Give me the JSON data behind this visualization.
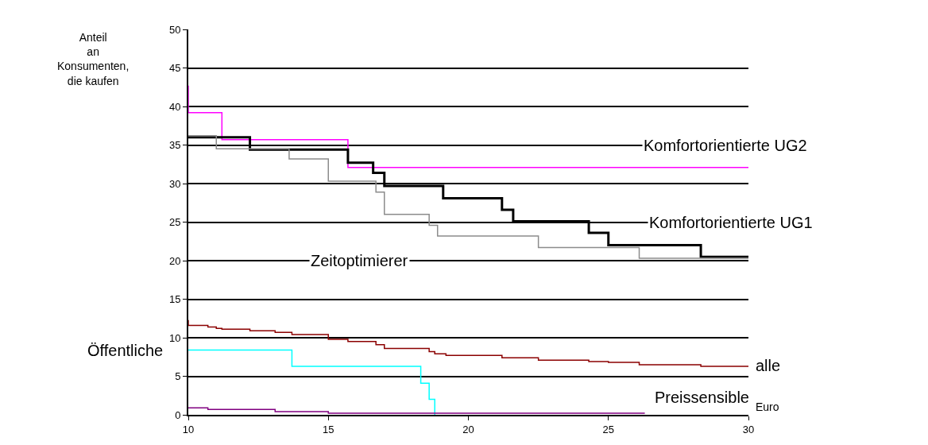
{
  "chart_data": {
    "type": "step",
    "xlabel": "Euro",
    "ylabel": "Anteil\nan\nKonsumenten,\ndie kaufen",
    "xlim": [
      10,
      30
    ],
    "xticks": [
      10,
      15,
      20,
      25,
      30
    ],
    "ylim": [
      0,
      50
    ],
    "yticks": [
      0,
      5,
      10,
      15,
      20,
      25,
      30,
      35,
      40,
      45,
      50
    ],
    "grid": "y",
    "legend": false,
    "line_style": "solid",
    "series": [
      {
        "name": "Komfortorientierte UG2",
        "color": "#ff00ff",
        "x": [
          10,
          10,
          11.2,
          15.7,
          30
        ],
        "values": [
          42.7,
          39.2,
          35.7,
          32.1,
          32.1
        ]
      },
      {
        "name": "Komfortorientierte UG1",
        "color": "#000000",
        "x": [
          10,
          12.2,
          15.7,
          16.6,
          17.0,
          19.1,
          21.2,
          21.6,
          24.3,
          25.0,
          28.3,
          30
        ],
        "values": [
          36,
          34.4,
          32.7,
          31.4,
          29.7,
          28.1,
          26.6,
          25.1,
          23.6,
          22.0,
          20.5,
          20.5
        ]
      },
      {
        "name": "Zeitoptimierer",
        "color": "#8c8c8c",
        "x": [
          10,
          11.0,
          13.6,
          15.0,
          16.7,
          17.0,
          18.6,
          18.9,
          22.5,
          26.1,
          30
        ],
        "values": [
          36.2,
          34.5,
          33.2,
          30.3,
          28.9,
          26.0,
          24.6,
          23.2,
          21.7,
          20.3,
          20.3
        ]
      },
      {
        "name": "alle",
        "color": "#8b0000",
        "x": [
          10,
          10,
          10.7,
          11.0,
          11.2,
          12.2,
          13.1,
          13.7,
          15.0,
          15.7,
          16.7,
          17.0,
          18.6,
          18.8,
          19.2,
          21.2,
          22.5,
          24.3,
          25.0,
          26.1,
          28.3,
          30
        ],
        "values": [
          12.3,
          11.6,
          11.4,
          11.2,
          11.1,
          10.9,
          10.7,
          10.4,
          9.8,
          9.5,
          9.1,
          8.6,
          8.2,
          7.9,
          7.7,
          7.4,
          7.1,
          6.9,
          6.8,
          6.5,
          6.3,
          6.3
        ]
      },
      {
        "name": "Öffentliche",
        "color": "#00ffff",
        "x": [
          10,
          13.7,
          18.3,
          18.6,
          18.8
        ],
        "values": [
          8.4,
          6.3,
          4.1,
          2,
          0
        ]
      },
      {
        "name": "Preissensible",
        "color": "#800080",
        "x": [
          10,
          10.7,
          13.1,
          15.0,
          26.3
        ],
        "values": [
          0.9,
          0.7,
          0.4,
          0.2,
          0.2
        ]
      }
    ]
  }
}
